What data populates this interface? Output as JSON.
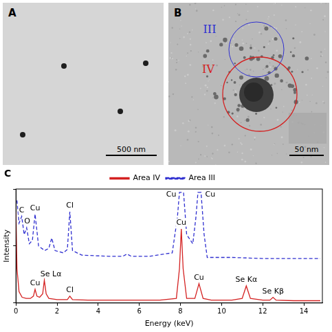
{
  "panels": [
    {
      "label": "A",
      "scale_bar": "500 nm"
    },
    {
      "label": "B",
      "scale_bar": "50 nm",
      "regions": [
        {
          "label": "III",
          "color": "#2f2fd0"
        },
        {
          "label": "IV",
          "color": "#d42020"
        }
      ]
    }
  ],
  "chart_data": {
    "label": "C",
    "type": "line",
    "x_label": "Energy (keV)",
    "y_label": "Intensity",
    "xlim": [
      0,
      14.9
    ],
    "xticks": [
      0,
      2,
      4,
      6,
      8,
      10,
      12,
      14
    ],
    "ylim": [
      0,
      100
    ],
    "yticks": [
      0,
      50,
      100
    ],
    "tick_labels": "x",
    "grid": false,
    "legend": "top",
    "series": [
      {
        "name": "Area IV",
        "color": "#d42020",
        "line_style": "solid",
        "x": [
          0,
          0.05,
          0.15,
          0.3,
          0.5,
          0.7,
          0.85,
          0.93,
          1.02,
          1.15,
          1.3,
          1.38,
          1.47,
          1.6,
          2.0,
          2.5,
          2.62,
          2.75,
          3.5,
          5,
          7,
          7.8,
          7.95,
          8.04,
          8.13,
          8.3,
          8.7,
          8.9,
          9.1,
          9.5,
          10.5,
          11.0,
          11.2,
          11.4,
          12.0,
          12.35,
          12.5,
          12.65,
          13.5,
          14.8
        ],
        "values": [
          80,
          30,
          10,
          5,
          4,
          4,
          6,
          12,
          6,
          5,
          8,
          20,
          8,
          4,
          3,
          3,
          6,
          3,
          2.5,
          2.5,
          2.5,
          4,
          30,
          65,
          30,
          4,
          4,
          17,
          4,
          2.5,
          2.5,
          4,
          15,
          4,
          2.5,
          2.5,
          5,
          2.5,
          2,
          2
        ]
      },
      {
        "name": "Area III",
        "color": "#2f2fd0",
        "line_style": "dashed",
        "x": [
          0.05,
          0.15,
          0.28,
          0.4,
          0.52,
          0.65,
          0.8,
          0.93,
          1.1,
          1.4,
          1.6,
          1.74,
          1.9,
          2.3,
          2.5,
          2.62,
          2.75,
          3.2,
          4.5,
          5.2,
          5.4,
          5.6,
          6.5,
          7.6,
          7.85,
          7.95,
          8.15,
          8.3,
          8.6,
          8.75,
          8.85,
          9.0,
          9.15,
          9.3,
          10.5,
          12,
          13.5,
          14.8
        ],
        "values": [
          90,
          70,
          76,
          60,
          66,
          52,
          55,
          78,
          50,
          46,
          48,
          57,
          46,
          44,
          47,
          80,
          46,
          42,
          41,
          41,
          43,
          41,
          41,
          44,
          75,
          97,
          97,
          60,
          52,
          75,
          97,
          97,
          60,
          40,
          40,
          39,
          39,
          39
        ]
      }
    ],
    "annotations": [
      {
        "text": "C",
        "x": 0.28,
        "y": 78
      },
      {
        "text": "O",
        "x": 0.55,
        "y": 68
      },
      {
        "text": "Cu",
        "x": 0.93,
        "y": 80
      },
      {
        "text": "Cl",
        "x": 2.62,
        "y": 82
      },
      {
        "text": "Cu",
        "x": 7.55,
        "y": 92
      },
      {
        "text": "Cu",
        "x": 9.45,
        "y": 92
      },
      {
        "text": "Cu",
        "x": 0.93,
        "y": 14
      },
      {
        "text": "Se Lα",
        "x": 1.7,
        "y": 22
      },
      {
        "text": "Cl",
        "x": 2.62,
        "y": 8
      },
      {
        "text": "Cu",
        "x": 8.04,
        "y": 67
      },
      {
        "text": "Cu",
        "x": 8.9,
        "y": 19
      },
      {
        "text": "Se Kα",
        "x": 11.2,
        "y": 17
      },
      {
        "text": "Se Kβ",
        "x": 12.5,
        "y": 7
      }
    ]
  }
}
